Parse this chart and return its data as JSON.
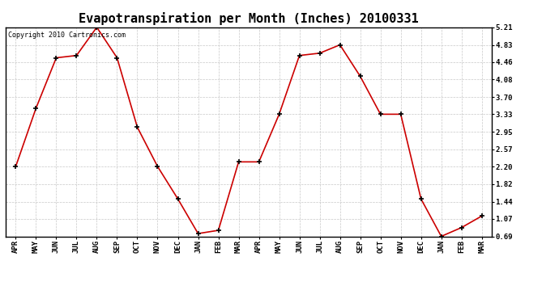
{
  "title": "Evapotranspiration per Month (Inches) 20100331",
  "copyright": "Copyright 2010 Cartronics.com",
  "x_labels": [
    "APR",
    "MAY",
    "JUN",
    "JUL",
    "AUG",
    "SEP",
    "OCT",
    "NOV",
    "DEC",
    "JAN",
    "FEB",
    "MAR",
    "APR",
    "MAY",
    "JUN",
    "JUL",
    "AUG",
    "SEP",
    "OCT",
    "NOV",
    "DEC",
    "JAN",
    "FEB",
    "MAR"
  ],
  "y_values": [
    2.2,
    3.46,
    4.55,
    4.6,
    5.21,
    4.55,
    3.05,
    2.2,
    1.5,
    0.75,
    0.82,
    2.3,
    2.3,
    3.33,
    4.6,
    4.65,
    4.83,
    4.15,
    3.33,
    3.33,
    1.5,
    0.69,
    0.88,
    1.13
  ],
  "y_ticks": [
    0.69,
    1.07,
    1.44,
    1.82,
    2.2,
    2.57,
    2.95,
    3.33,
    3.7,
    4.08,
    4.46,
    4.83,
    5.21
  ],
  "y_min": 0.69,
  "y_max": 5.21,
  "line_color": "#cc0000",
  "marker": "+",
  "background_color": "#ffffff",
  "grid_color": "#c8c8c8",
  "title_fontsize": 11,
  "tick_fontsize": 6.5,
  "copyright_fontsize": 6
}
